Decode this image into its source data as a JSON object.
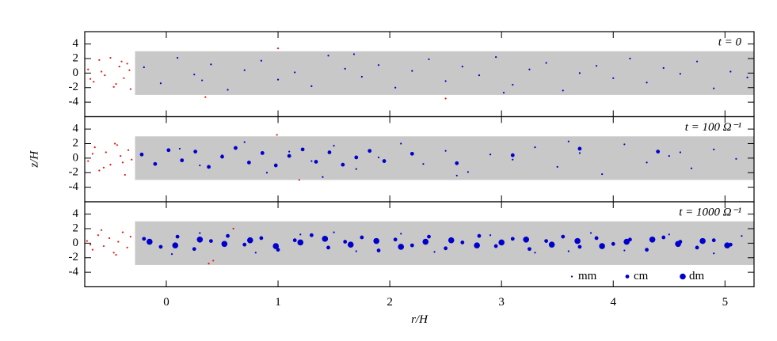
{
  "chart_data": [
    {
      "type": "scatter",
      "annotation": "t = 0",
      "xlim": [
        -0.73,
        5.26
      ],
      "xticks": [
        0,
        1,
        2,
        3,
        4,
        5
      ],
      "ylim": [
        -6,
        5.7
      ],
      "yticks": [
        -4,
        -2,
        0,
        2,
        4
      ],
      "shaded_region": {
        "x": [
          -0.28,
          5.26
        ],
        "y": [
          -3,
          3
        ],
        "color": "#c8c8c8"
      },
      "series": [
        {
          "color": "#ee1111",
          "x": [
            -0.7,
            -0.65,
            -0.6,
            -0.55,
            -0.5,
            -0.47,
            -0.42,
            -0.38,
            -0.35,
            -0.32,
            -0.68,
            -0.58,
            -0.45,
            -0.4,
            -0.33,
            0.35,
            1.0,
            2.5
          ],
          "y": [
            0.5,
            -1.2,
            1.8,
            -0.3,
            2.1,
            -1.9,
            0.9,
            -0.7,
            1.3,
            -2.2,
            -0.8,
            0.2,
            -1.5,
            1.6,
            0.4,
            -3.3,
            3.4,
            -3.5
          ]
        },
        {
          "color": "#0000cc",
          "x": [
            -0.2,
            -0.05,
            0.1,
            0.25,
            0.4,
            0.55,
            0.7,
            0.85,
            1.0,
            1.15,
            1.3,
            1.45,
            1.6,
            1.75,
            1.9,
            2.05,
            2.2,
            2.35,
            2.5,
            2.65,
            2.8,
            2.95,
            3.1,
            3.25,
            3.4,
            3.55,
            3.7,
            3.85,
            4.0,
            4.15,
            4.3,
            4.45,
            4.6,
            4.75,
            4.9,
            5.05,
            5.2,
            0.32,
            1.68,
            3.02
          ],
          "y": [
            0.8,
            -1.4,
            2.1,
            -0.2,
            1.2,
            -2.3,
            0.4,
            1.7,
            -0.9,
            0.1,
            -1.8,
            2.4,
            0.6,
            -0.5,
            1.1,
            -2.0,
            0.3,
            1.9,
            -1.1,
            0.9,
            -0.3,
            2.2,
            -1.6,
            0.5,
            1.4,
            -2.4,
            0.0,
            1.0,
            -0.7,
            2.0,
            -1.3,
            0.7,
            -0.1,
            1.6,
            -2.1,
            0.2,
            -0.6,
            -1.0,
            2.6,
            -2.7
          ]
        }
      ]
    },
    {
      "type": "scatter",
      "annotation": "t = 100 Ω⁻¹",
      "ylabel": "z/H",
      "xlim": [
        -0.73,
        5.26
      ],
      "xticks": [
        0,
        1,
        2,
        3,
        4,
        5
      ],
      "ylim": [
        -6,
        5.7
      ],
      "yticks": [
        -4,
        -2,
        0,
        2,
        4
      ],
      "shaded_region": {
        "x": [
          -0.28,
          5.26
        ],
        "y": [
          -3,
          3
        ],
        "color": "#c8c8c8"
      },
      "series": [
        {
          "color": "#ee1111",
          "x": [
            -0.7,
            -0.64,
            -0.6,
            -0.54,
            -0.5,
            -0.46,
            -0.41,
            -0.37,
            -0.34,
            -0.31,
            -0.66,
            -0.56,
            -0.44,
            -0.39,
            0.99,
            1.19
          ],
          "y": [
            -0.4,
            1.5,
            -1.7,
            0.8,
            -0.9,
            2.0,
            0.3,
            -2.3,
            1.1,
            -0.2,
            0.6,
            -1.3,
            1.8,
            -0.6,
            3.2,
            -3.0
          ]
        },
        {
          "color": "#0000cc",
          "x": [
            0.12,
            0.3,
            0.5,
            0.7,
            0.9,
            1.1,
            1.3,
            1.5,
            1.7,
            1.9,
            2.1,
            2.3,
            2.5,
            2.7,
            2.9,
            3.1,
            3.3,
            3.5,
            3.7,
            3.9,
            4.1,
            4.3,
            4.5,
            4.7,
            4.9,
            5.1,
            2.6,
            3.6,
            4.6,
            1.4
          ],
          "y": [
            1.3,
            -1.0,
            0.4,
            2.2,
            -2.0,
            0.9,
            -0.4,
            1.7,
            -1.5,
            0.1,
            2.0,
            -0.8,
            1.0,
            -1.9,
            0.5,
            -0.2,
            1.5,
            -1.2,
            0.7,
            -2.2,
            1.9,
            -0.6,
            0.3,
            -1.4,
            1.2,
            -0.1,
            -2.4,
            2.3,
            0.8,
            -2.6
          ]
        },
        {
          "color": "#0000cc",
          "x": [
            -0.22,
            -0.1,
            0.02,
            0.14,
            0.26,
            0.38,
            0.5,
            0.62,
            0.74,
            0.86,
            0.98,
            1.1,
            1.22,
            1.34,
            1.46,
            1.58,
            1.7,
            1.82,
            1.95,
            2.2,
            2.6,
            3.1,
            3.7,
            4.4
          ],
          "y": [
            0.5,
            -0.8,
            1.1,
            -0.3,
            0.9,
            -1.2,
            0.2,
            1.4,
            -0.6,
            0.7,
            -1.0,
            0.3,
            1.2,
            -0.5,
            0.8,
            -0.9,
            0.1,
            1.0,
            -0.4,
            0.6,
            -0.7,
            0.4,
            1.3,
            0.9
          ]
        }
      ]
    },
    {
      "type": "scatter",
      "annotation": "t = 1000 Ω⁻¹",
      "xlabel": "r/H",
      "legend": "lower right",
      "xlim": [
        -0.73,
        5.26
      ],
      "xticks": [
        0,
        1,
        2,
        3,
        4,
        5
      ],
      "ylim": [
        -6,
        5.7
      ],
      "yticks": [
        -4,
        -2,
        0,
        2,
        4
      ],
      "shaded_region": {
        "x": [
          -0.28,
          5.26
        ],
        "y": [
          -3,
          3
        ],
        "color": "#c8c8c8"
      },
      "series": [
        {
          "color": "#ee1111",
          "x": [
            -0.71,
            -0.66,
            -0.61,
            -0.56,
            -0.51,
            -0.47,
            -0.43,
            -0.39,
            -0.35,
            -0.32,
            -0.68,
            -0.58,
            -0.45,
            0.42,
            0.6,
            0.38
          ],
          "y": [
            0.3,
            -0.9,
            1.1,
            -0.4,
            0.7,
            -1.3,
            0.2,
            1.5,
            -0.6,
            0.9,
            -0.2,
            1.8,
            -1.6,
            -2.4,
            2.0,
            -2.8
          ]
        },
        {
          "name": "mm",
          "color": "#0000cc",
          "x": [
            0.3,
            0.8,
            1.2,
            1.7,
            2.1,
            2.4,
            2.9,
            3.3,
            3.8,
            4.1,
            4.5,
            4.9,
            5.15,
            0.05,
            1.5,
            3.6
          ],
          "y": [
            1.4,
            -1.3,
            1.2,
            -1.1,
            1.3,
            -1.2,
            1.1,
            -1.3,
            1.4,
            -1.0,
            1.2,
            -1.4,
            1.0,
            -1.5,
            1.5,
            -1.1
          ]
        },
        {
          "name": "cm",
          "color": "#0000cc",
          "x": [
            -0.2,
            -0.05,
            0.1,
            0.25,
            0.4,
            0.55,
            0.7,
            0.85,
            1.0,
            1.15,
            1.3,
            1.45,
            1.6,
            1.75,
            1.9,
            2.05,
            2.2,
            2.35,
            2.5,
            2.65,
            2.8,
            2.95,
            3.1,
            3.25,
            3.4,
            3.55,
            3.7,
            3.85,
            4.0,
            4.15,
            4.3,
            4.45,
            4.6,
            4.75,
            4.9,
            5.05
          ],
          "y": [
            0.6,
            -0.5,
            0.9,
            -0.8,
            0.3,
            1.0,
            -0.2,
            0.7,
            -0.9,
            0.4,
            1.1,
            -0.6,
            0.2,
            0.8,
            -1.0,
            0.5,
            -0.3,
            0.9,
            -0.7,
            0.1,
            1.0,
            -0.4,
            0.6,
            -0.8,
            0.3,
            0.9,
            -0.5,
            0.7,
            -0.1,
            0.5,
            -0.9,
            0.8,
            0.2,
            -0.6,
            0.4,
            -0.2
          ]
        },
        {
          "name": "dm",
          "color": "#0000cc",
          "x": [
            -0.15,
            0.08,
            0.3,
            0.52,
            0.75,
            0.98,
            1.2,
            1.42,
            1.65,
            1.88,
            2.1,
            2.32,
            2.55,
            2.78,
            3.0,
            3.22,
            3.45,
            3.68,
            3.9,
            4.12,
            4.35,
            4.58,
            4.8,
            5.02
          ],
          "y": [
            0.2,
            -0.3,
            0.5,
            -0.1,
            0.4,
            -0.4,
            0.1,
            0.6,
            -0.2,
            0.3,
            -0.5,
            0.2,
            0.4,
            -0.3,
            0.1,
            0.5,
            -0.2,
            0.3,
            -0.4,
            0.2,
            0.5,
            -0.1,
            0.3,
            -0.3
          ]
        }
      ]
    }
  ]
}
